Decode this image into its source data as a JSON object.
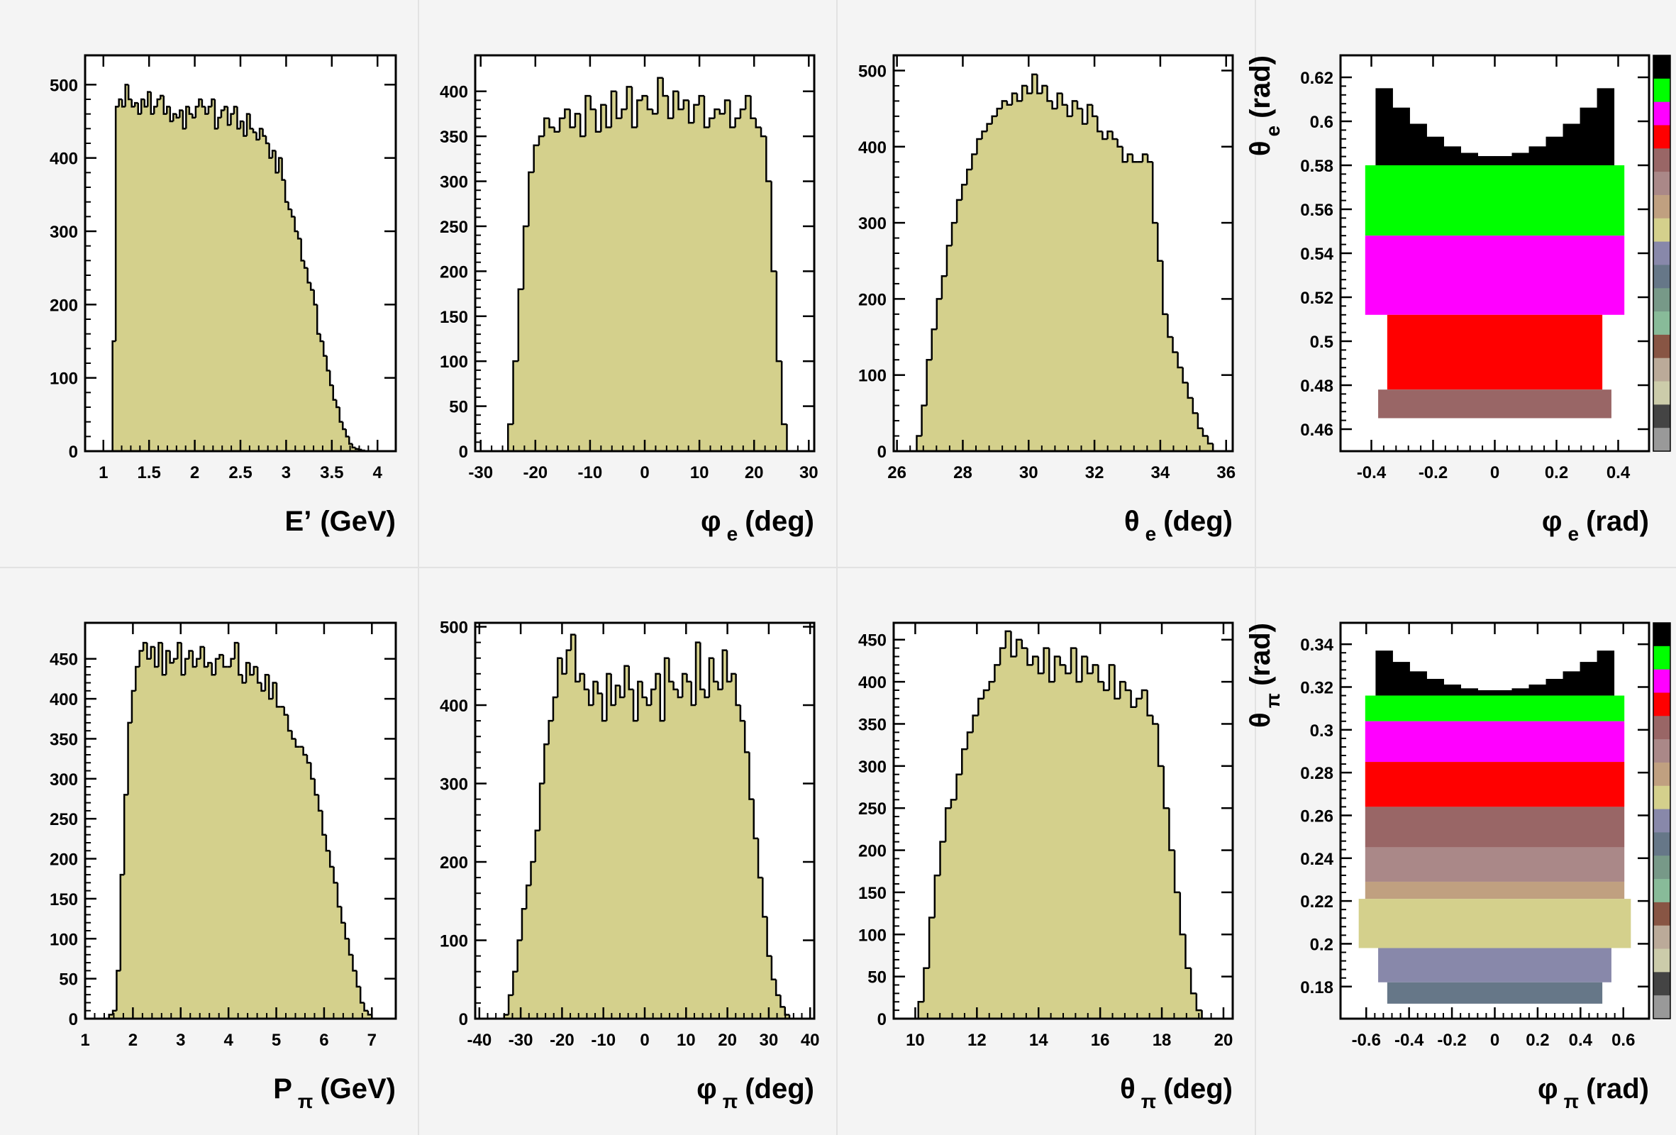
{
  "colors": {
    "background": "#f4f4f4",
    "hist_fill": "#d4d08c",
    "hist_line": "#000000",
    "frame": "#000000"
  },
  "chart_data": [
    {
      "type": "histogram",
      "xlabel": {
        "sym": "E’",
        "sub": "",
        "unit": "(GeV)"
      },
      "xlim": [
        0.8,
        4.2
      ],
      "ylim": [
        0,
        540
      ],
      "xticks": [
        1,
        1.5,
        2,
        2.5,
        3,
        3.5,
        4
      ],
      "yticks": [
        0,
        100,
        200,
        300,
        400,
        500
      ],
      "bin_range": [
        1.1,
        3.9
      ],
      "values": [
        150,
        470,
        480,
        470,
        500,
        480,
        470,
        475,
        460,
        480,
        470,
        490,
        460,
        470,
        480,
        485,
        460,
        470,
        450,
        460,
        455,
        465,
        440,
        470,
        460,
        455,
        470,
        480,
        470,
        460,
        470,
        480,
        440,
        455,
        465,
        470,
        445,
        460,
        470,
        440,
        450,
        430,
        460,
        440,
        435,
        425,
        440,
        430,
        420,
        400,
        410,
        380,
        400,
        370,
        340,
        330,
        320,
        300,
        290,
        260,
        250,
        230,
        220,
        200,
        160,
        150,
        130,
        110,
        90,
        70,
        60,
        40,
        30,
        20,
        10,
        5,
        3,
        2,
        1,
        0
      ]
    },
    {
      "type": "histogram",
      "xlabel": {
        "sym": "φ",
        "sub": "e",
        "unit": "(deg)"
      },
      "xlim": [
        -31,
        31
      ],
      "ylim": [
        0,
        440
      ],
      "xticks": [
        -30,
        -20,
        -10,
        0,
        10,
        20,
        30
      ],
      "yticks": [
        0,
        50,
        100,
        150,
        200,
        250,
        300,
        350,
        400
      ],
      "bin_range": [
        -25,
        26
      ],
      "values": [
        30,
        100,
        180,
        250,
        310,
        340,
        350,
        370,
        360,
        355,
        370,
        380,
        360,
        375,
        350,
        395,
        380,
        355,
        385,
        360,
        400,
        370,
        380,
        405,
        360,
        390,
        395,
        380,
        375,
        415,
        395,
        370,
        400,
        380,
        390,
        365,
        385,
        395,
        360,
        370,
        380,
        375,
        390,
        360,
        370,
        380,
        395,
        370,
        360,
        350,
        300,
        200,
        100,
        30
      ]
    },
    {
      "type": "histogram",
      "xlabel": {
        "sym": "θ",
        "sub": "e",
        "unit": "(deg)"
      },
      "xlim": [
        25.9,
        36.2
      ],
      "ylim": [
        0,
        520
      ],
      "xticks": [
        26,
        28,
        30,
        32,
        34,
        36
      ],
      "yticks": [
        0,
        100,
        200,
        300,
        400,
        500
      ],
      "bin_range": [
        26.6,
        35.6
      ],
      "values": [
        20,
        60,
        120,
        160,
        200,
        230,
        270,
        300,
        330,
        350,
        370,
        390,
        410,
        420,
        430,
        440,
        450,
        460,
        455,
        470,
        460,
        480,
        470,
        495,
        470,
        480,
        460,
        450,
        470,
        455,
        440,
        460,
        450,
        430,
        455,
        440,
        420,
        410,
        420,
        410,
        400,
        380,
        390,
        380,
        380,
        390,
        380,
        300,
        250,
        180,
        150,
        130,
        110,
        90,
        70,
        50,
        30,
        20,
        10
      ]
    },
    {
      "type": "colz",
      "xlabel": {
        "sym": "φ",
        "sub": "e",
        "unit": "(rad)"
      },
      "ylabel": {
        "sym": "θ",
        "sub": "e",
        "unit": "(rad)"
      },
      "xlim": [
        -0.5,
        0.5
      ],
      "ylim": [
        0.45,
        0.63
      ],
      "xticks": [
        -0.4,
        -0.2,
        0,
        0.2,
        0.4
      ],
      "yticks": [
        0.46,
        0.48,
        0.5,
        0.52,
        0.54,
        0.56,
        0.58,
        0.6,
        0.62
      ],
      "bands": [
        {
          "y0": 0.58,
          "y1": 0.62,
          "color": "#000000",
          "shape": "horns"
        },
        {
          "y0": 0.548,
          "y1": 0.58,
          "color": "#00ff00",
          "shape": "rect"
        },
        {
          "y0": 0.512,
          "y1": 0.548,
          "color": "#ff00ff",
          "shape": "rect"
        },
        {
          "y0": 0.478,
          "y1": 0.512,
          "color": "#ff0000",
          "shape": "taper"
        },
        {
          "y0": 0.465,
          "y1": 0.478,
          "color": "#996666",
          "shape": "taper"
        }
      ],
      "palette": [
        "#000000",
        "#00ff00",
        "#ff00ff",
        "#ff0000",
        "#996666",
        "#aa8888",
        "#c0a080",
        "#d4d08c",
        "#8888aa",
        "#667788",
        "#779988",
        "#88bb99",
        "#885544",
        "#bbaa99",
        "#ccccaa",
        "#444444",
        "#999999"
      ]
    },
    {
      "type": "histogram",
      "xlabel": {
        "sym": "P",
        "sub": "π",
        "unit": "(GeV)"
      },
      "xlim": [
        1,
        7.5
      ],
      "ylim": [
        0,
        495
      ],
      "xticks": [
        1,
        2,
        3,
        4,
        5,
        6,
        7
      ],
      "yticks": [
        0,
        50,
        100,
        150,
        200,
        250,
        300,
        350,
        400,
        450
      ],
      "bin_range": [
        1.5,
        7.0
      ],
      "values": [
        5,
        10,
        60,
        180,
        280,
        370,
        410,
        440,
        460,
        470,
        450,
        465,
        440,
        470,
        430,
        460,
        445,
        450,
        470,
        430,
        450,
        460,
        440,
        450,
        465,
        440,
        445,
        430,
        450,
        455,
        440,
        440,
        450,
        470,
        430,
        420,
        445,
        430,
        440,
        420,
        410,
        430,
        400,
        420,
        390,
        390,
        380,
        360,
        350,
        340,
        340,
        330,
        320,
        300,
        280,
        260,
        230,
        210,
        190,
        170,
        140,
        120,
        100,
        80,
        60,
        40,
        20,
        10,
        5
      ]
    },
    {
      "type": "histogram",
      "xlabel": {
        "sym": "φ",
        "sub": "π",
        "unit": "(deg)"
      },
      "xlim": [
        -41,
        41
      ],
      "ylim": [
        0,
        505
      ],
      "xticks": [
        -40,
        -30,
        -20,
        -10,
        0,
        10,
        20,
        30,
        40
      ],
      "yticks": [
        0,
        100,
        200,
        300,
        400,
        500
      ],
      "bin_range": [
        -34,
        35
      ],
      "values": [
        5,
        30,
        60,
        100,
        140,
        170,
        200,
        240,
        300,
        350,
        380,
        410,
        460,
        440,
        470,
        490,
        430,
        440,
        420,
        400,
        430,
        415,
        380,
        440,
        400,
        425,
        410,
        450,
        420,
        380,
        430,
        410,
        400,
        420,
        440,
        380,
        460,
        430,
        420,
        410,
        440,
        430,
        400,
        480,
        420,
        410,
        460,
        430,
        420,
        470,
        430,
        440,
        400,
        380,
        340,
        280,
        230,
        180,
        130,
        80,
        50,
        30,
        15,
        5
      ]
    },
    {
      "type": "histogram",
      "xlabel": {
        "sym": "θ",
        "sub": "π",
        "unit": "(deg)"
      },
      "xlim": [
        9.3,
        20.3
      ],
      "ylim": [
        0,
        470
      ],
      "xticks": [
        10,
        12,
        14,
        16,
        18,
        20
      ],
      "yticks": [
        0,
        50,
        100,
        150,
        200,
        250,
        300,
        350,
        400,
        450
      ],
      "bin_range": [
        10.1,
        19.3
      ],
      "values": [
        20,
        60,
        120,
        170,
        210,
        250,
        260,
        290,
        320,
        340,
        360,
        380,
        390,
        400,
        420,
        440,
        460,
        430,
        450,
        440,
        420,
        430,
        410,
        440,
        400,
        430,
        420,
        410,
        440,
        400,
        430,
        410,
        420,
        400,
        390,
        420,
        380,
        400,
        390,
        370,
        380,
        390,
        360,
        350,
        300,
        250,
        200,
        150,
        100,
        60,
        30,
        10
      ]
    },
    {
      "type": "colz",
      "xlabel": {
        "sym": "φ",
        "sub": "π",
        "unit": "(rad)"
      },
      "ylabel": {
        "sym": "θ",
        "sub": "π",
        "unit": "(rad)"
      },
      "xlim": [
        -0.72,
        0.72
      ],
      "ylim": [
        0.165,
        0.35
      ],
      "xticks": [
        -0.6,
        -0.4,
        -0.2,
        0,
        0.2,
        0.4,
        0.6
      ],
      "yticks": [
        0.18,
        0.2,
        0.22,
        0.24,
        0.26,
        0.28,
        0.3,
        0.32,
        0.34
      ],
      "bands": [
        {
          "y0": 0.316,
          "y1": 0.34,
          "color": "#000000",
          "shape": "horns"
        },
        {
          "y0": 0.304,
          "y1": 0.316,
          "color": "#00ff00",
          "shape": "rect"
        },
        {
          "y0": 0.285,
          "y1": 0.304,
          "color": "#ff00ff",
          "shape": "rect"
        },
        {
          "y0": 0.264,
          "y1": 0.285,
          "color": "#ff0000",
          "shape": "rect"
        },
        {
          "y0": 0.245,
          "y1": 0.264,
          "color": "#996666",
          "shape": "rect"
        },
        {
          "y0": 0.229,
          "y1": 0.245,
          "color": "#aa8888",
          "shape": "rect"
        },
        {
          "y0": 0.221,
          "y1": 0.229,
          "color": "#c0a080",
          "shape": "rect"
        },
        {
          "y0": 0.198,
          "y1": 0.221,
          "color": "#d4d08c",
          "shape": "bulge"
        },
        {
          "y0": 0.182,
          "y1": 0.198,
          "color": "#8888aa",
          "shape": "taper"
        },
        {
          "y0": 0.172,
          "y1": 0.182,
          "color": "#667788",
          "shape": "taper"
        }
      ],
      "palette": [
        "#000000",
        "#00ff00",
        "#ff00ff",
        "#ff0000",
        "#996666",
        "#aa8888",
        "#c0a080",
        "#d4d08c",
        "#8888aa",
        "#667788",
        "#779988",
        "#88bb99",
        "#885544",
        "#bbaa99",
        "#ccccaa",
        "#444444",
        "#999999"
      ]
    }
  ]
}
